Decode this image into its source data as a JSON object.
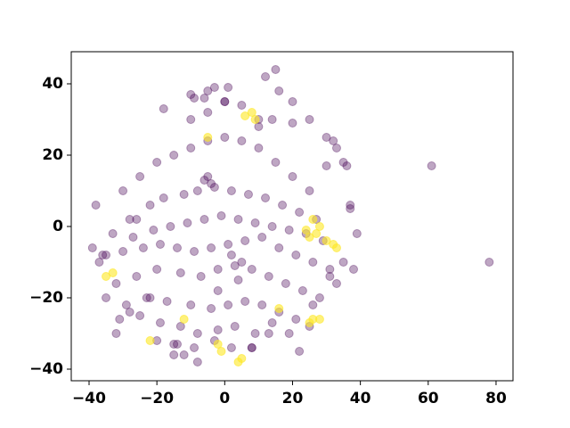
{
  "chart_data": {
    "type": "scatter",
    "xlim": [
      -45.25,
      85
    ],
    "ylim": [
      -43.25,
      49
    ],
    "xticks": [
      {
        "value": -40,
        "label": "−40"
      },
      {
        "value": -20,
        "label": "−20"
      },
      0,
      20,
      40,
      60,
      80
    ],
    "yticks": [
      {
        "value": -40,
        "label": "−40"
      },
      {
        "value": -20,
        "label": "−20"
      },
      0,
      20,
      40
    ],
    "grid": false,
    "series": [
      {
        "color": "#440154",
        "opacity": 0.35,
        "x": [
          -30,
          -25,
          -20,
          -15,
          -10,
          -5,
          0,
          5,
          10,
          15,
          20,
          25,
          -28,
          -22,
          -18,
          -12,
          -8,
          -3,
          2,
          7,
          12,
          17,
          22,
          27,
          -33,
          -27,
          -21,
          -16,
          -11,
          -6,
          -1,
          4,
          9,
          14,
          19,
          24,
          29,
          -35,
          -30,
          -24,
          -19,
          -14,
          -9,
          -4,
          1,
          6,
          11,
          16,
          21,
          26,
          31,
          -32,
          -26,
          -20,
          -13,
          -7,
          -2,
          3,
          8,
          13,
          18,
          23,
          28,
          -29,
          -23,
          -17,
          -10,
          -4,
          1,
          6,
          11,
          16,
          21,
          25,
          -25,
          -19,
          -13,
          -8,
          -2,
          3,
          9,
          14,
          19,
          -20,
          -14,
          -9,
          -3,
          2,
          8,
          13,
          -10,
          -5,
          0,
          5,
          10,
          -6,
          -4,
          -5,
          61,
          78,
          35,
          37,
          36,
          38,
          30,
          32,
          33,
          37,
          39,
          -38,
          -39,
          -36,
          -37,
          -5,
          -6,
          -3,
          15,
          16,
          20,
          25,
          -18,
          -10,
          -9,
          0,
          1,
          10,
          12,
          14,
          30,
          31,
          -22,
          -28,
          -32,
          -35,
          -31,
          4,
          -2,
          5,
          35,
          -15,
          20,
          22,
          -8,
          -12,
          8,
          -26,
          -15,
          26,
          33,
          2
        ],
        "values": [
          10,
          14,
          18,
          20,
          22,
          24,
          25,
          24,
          22,
          18,
          14,
          10,
          2,
          6,
          8,
          9,
          10,
          11,
          10,
          9,
          8,
          6,
          4,
          2,
          -2,
          -3,
          -1,
          0,
          1,
          2,
          3,
          2,
          1,
          0,
          -1,
          -2,
          -4,
          -8,
          -7,
          -6,
          -5,
          -6,
          -7,
          -6,
          -5,
          -4,
          -3,
          -6,
          -8,
          -10,
          -12,
          -16,
          -14,
          -12,
          -13,
          -14,
          -12,
          -11,
          -12,
          -14,
          -16,
          -18,
          -20,
          -22,
          -20,
          -21,
          -22,
          -23,
          -22,
          -21,
          -22,
          -24,
          -26,
          -28,
          -25,
          -27,
          -28,
          -30,
          -29,
          -28,
          -30,
          -27,
          -30,
          -32,
          -33,
          -34,
          -32,
          -34,
          -34,
          -30,
          30,
          32,
          35,
          34,
          30,
          13,
          12,
          14,
          17,
          -10,
          18,
          5,
          17,
          -12,
          25,
          24,
          22,
          6,
          -2,
          6,
          -6,
          -8,
          -10,
          38,
          36,
          39,
          44,
          38,
          29,
          30,
          33,
          37,
          36,
          35,
          39,
          28,
          42,
          30,
          17,
          -14,
          -20,
          -24,
          -30,
          -20,
          -26,
          -15,
          -18,
          -10,
          -10,
          -36,
          35,
          -35,
          -38,
          -36,
          -34,
          2,
          -33,
          -22,
          -16,
          -8
        ]
      },
      {
        "color": "#fde725",
        "opacity": 0.6,
        "x": [
          8,
          6,
          9,
          -5,
          27,
          30,
          32,
          25,
          28,
          33,
          26,
          28,
          25,
          -35,
          -33,
          16,
          -2,
          -1,
          5,
          4,
          -12,
          -22,
          26,
          24
        ],
        "values": [
          32,
          31,
          30,
          25,
          -2,
          -4,
          -5,
          -3,
          0,
          -6,
          -26,
          -26,
          -27,
          -14,
          -13,
          -23,
          -33,
          -35,
          -37,
          -38,
          -26,
          -32,
          2,
          -1
        ]
      }
    ]
  }
}
